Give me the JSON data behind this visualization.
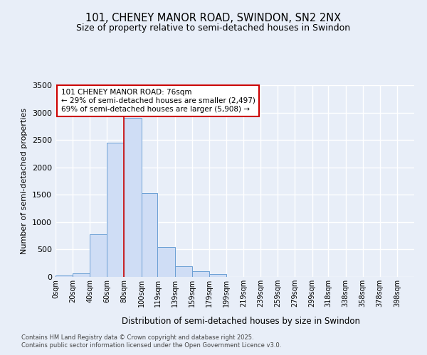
{
  "title_line1": "101, CHENEY MANOR ROAD, SWINDON, SN2 2NX",
  "title_line2": "Size of property relative to semi-detached houses in Swindon",
  "xlabel": "Distribution of semi-detached houses by size in Swindon",
  "ylabel": "Number of semi-detached properties",
  "categories": [
    "0sqm",
    "20sqm",
    "40sqm",
    "60sqm",
    "80sqm",
    "100sqm",
    "119sqm",
    "139sqm",
    "159sqm",
    "179sqm",
    "199sqm",
    "219sqm",
    "239sqm",
    "259sqm",
    "279sqm",
    "299sqm",
    "318sqm",
    "338sqm",
    "358sqm",
    "378sqm",
    "398sqm"
  ],
  "bar_values": [
    20,
    60,
    780,
    2450,
    2900,
    1530,
    550,
    200,
    100,
    50,
    0,
    0,
    0,
    0,
    0,
    0,
    0,
    0,
    0,
    0,
    0
  ],
  "bar_left_edges": [
    0,
    20,
    40,
    60,
    80,
    100,
    119,
    139,
    159,
    179,
    199,
    219,
    239,
    259,
    279,
    299,
    318,
    338,
    358,
    378,
    398
  ],
  "bar_widths": [
    20,
    20,
    20,
    20,
    20,
    19,
    20,
    20,
    20,
    20,
    20,
    20,
    20,
    20,
    20,
    19,
    20,
    20,
    20,
    20,
    20
  ],
  "bar_color": "#cfddf5",
  "bar_edge_color": "#6b9fd4",
  "vline_x": 80,
  "vline_color": "#cc0000",
  "ylim": [
    0,
    3500
  ],
  "yticks": [
    0,
    500,
    1000,
    1500,
    2000,
    2500,
    3000,
    3500
  ],
  "annotation_text": "101 CHENEY MANOR ROAD: 76sqm\n← 29% of semi-detached houses are smaller (2,497)\n69% of semi-detached houses are larger (5,908) →",
  "annotation_box_color": "#ffffff",
  "annotation_box_edge": "#cc0000",
  "footer_text": "Contains HM Land Registry data © Crown copyright and database right 2025.\nContains public sector information licensed under the Open Government Licence v3.0.",
  "bg_color": "#e8eef8",
  "plot_bg_color": "#e8eef8",
  "grid_color": "#ffffff"
}
